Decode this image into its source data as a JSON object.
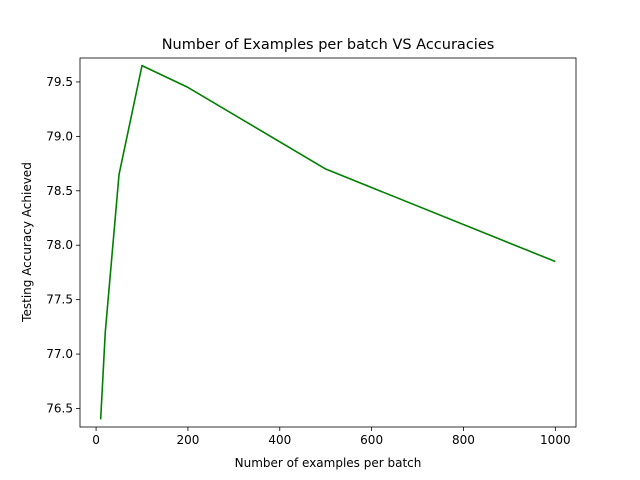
{
  "chart_data": {
    "type": "line",
    "title": "Number of Examples per batch VS Accuracies",
    "xlabel": "Number of examples per batch",
    "ylabel": "Testing Accuracy Achieved",
    "xlim": [
      -35,
      1045
    ],
    "ylim": [
      76.33,
      79.72
    ],
    "xticks": [
      0,
      200,
      400,
      600,
      800,
      1000
    ],
    "yticks": [
      76.5,
      77.0,
      77.5,
      78.0,
      78.5,
      79.0,
      79.5
    ],
    "xtick_labels": [
      "0",
      "200",
      "400",
      "600",
      "800",
      "1000"
    ],
    "ytick_labels": [
      "76.5",
      "77.0",
      "77.5",
      "78.0",
      "78.5",
      "79.0",
      "79.5"
    ],
    "grid": false,
    "series": [
      {
        "color": "#008000",
        "x": [
          10,
          20,
          50,
          100,
          200,
          500,
          1000
        ],
        "y": [
          76.4,
          77.2,
          78.65,
          79.65,
          79.45,
          78.7,
          77.85
        ]
      }
    ]
  }
}
